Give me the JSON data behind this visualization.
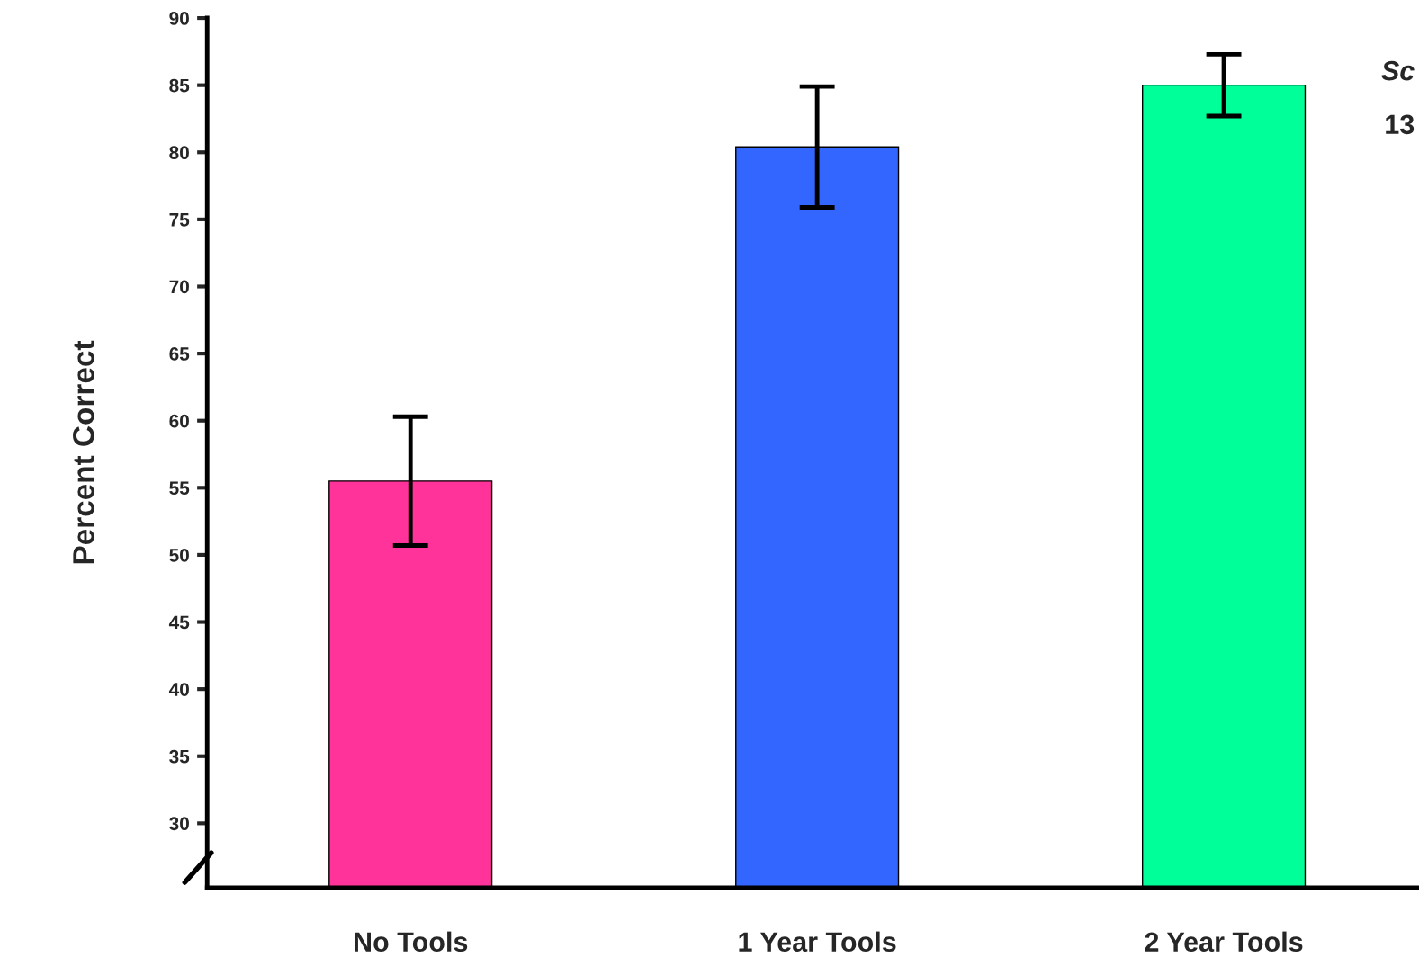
{
  "chart_data": {
    "type": "bar",
    "ylabel": "Percent Correct",
    "categories": [
      "No Tools",
      "1 Year Tools",
      "2 Year Tools"
    ],
    "values": [
      55.5,
      80.4,
      85.0
    ],
    "colors": [
      "#ff3399",
      "#3366ff",
      "#00ff99"
    ],
    "errors": [
      4.8,
      4.5,
      2.3
    ],
    "ylim": [
      25.2,
      90
    ],
    "yticks": [
      30,
      35,
      40,
      45,
      50,
      55,
      60,
      65,
      70,
      75,
      80,
      85,
      90
    ],
    "grid": false,
    "annotations": [
      "Sc",
      "13"
    ]
  }
}
